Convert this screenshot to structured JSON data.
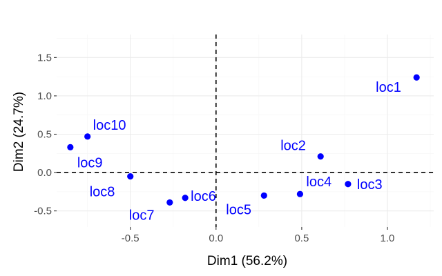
{
  "chart_data": {
    "type": "scatter",
    "title": "",
    "xlabel": "Dim1 (56.2%)",
    "ylabel": "Dim2 (24.7%)",
    "xlim": [
      -0.93,
      1.27
    ],
    "ylim": [
      -0.71,
      1.8
    ],
    "x_ticks": [
      -0.5,
      0.0,
      0.5,
      1.0
    ],
    "x_tick_labels": [
      "-0.5",
      "0.0",
      "0.5",
      "1.0"
    ],
    "y_ticks": [
      -0.5,
      0.0,
      0.5,
      1.0,
      1.5
    ],
    "y_tick_labels": [
      "-0.5",
      "0.0",
      "0.5",
      "1.0",
      "1.5"
    ],
    "grid": true,
    "reference_lines": {
      "x": 0,
      "y": 0
    },
    "point_color": "#0000ff",
    "points": [
      {
        "label": "loc1",
        "x": 1.17,
        "y": 1.24
      },
      {
        "label": "loc2",
        "x": 0.61,
        "y": 0.21
      },
      {
        "label": "loc3",
        "x": 0.77,
        "y": -0.15
      },
      {
        "label": "loc4",
        "x": 0.49,
        "y": -0.28
      },
      {
        "label": "loc5",
        "x": 0.28,
        "y": -0.3
      },
      {
        "label": "loc6",
        "x": -0.18,
        "y": -0.33
      },
      {
        "label": "loc7",
        "x": -0.27,
        "y": -0.39
      },
      {
        "label": "loc8",
        "x": -0.5,
        "y": -0.05
      },
      {
        "label": "loc9",
        "x": -0.85,
        "y": 0.33
      },
      {
        "label": "loc10",
        "x": -0.75,
        "y": 0.47
      }
    ]
  }
}
